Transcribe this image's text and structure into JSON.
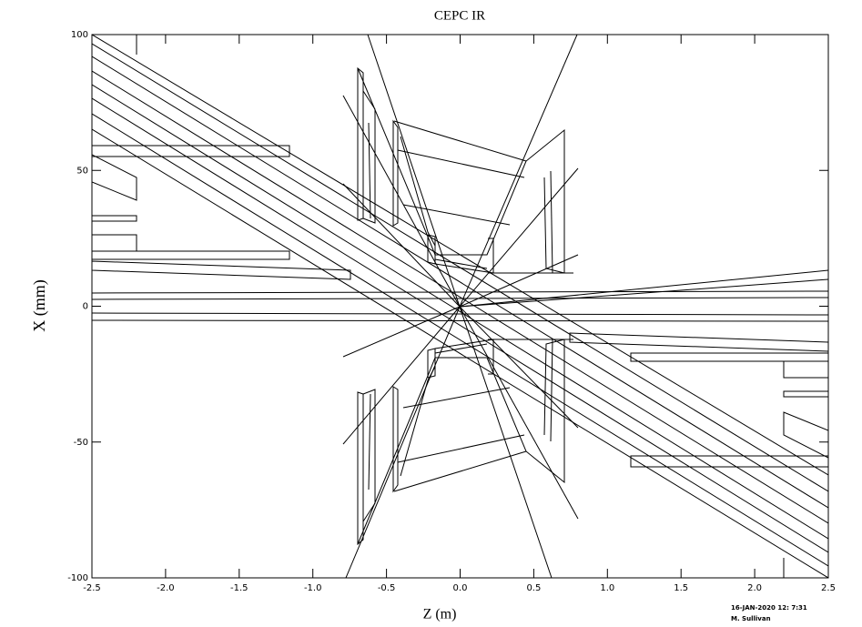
{
  "chart_data": {
    "type": "line",
    "title": "CEPC IR",
    "xlabel": "Z (m)",
    "ylabel": "X (mm)",
    "xlim": [
      -2.5,
      2.5
    ],
    "ylim": [
      -100,
      100
    ],
    "xticks": [
      -2.5,
      {
        "value": -2,
        "label": "-2.0"
      },
      -1.5,
      {
        "value": -1,
        "label": "-1.0"
      },
      -0.5,
      {
        "value": 0,
        "label": "0.0"
      },
      0.5,
      {
        "value": 1,
        "label": "1.0"
      },
      1.5,
      {
        "value": 2,
        "label": "2.0"
      },
      2.5
    ],
    "yticks": [
      -100,
      -50,
      0,
      50,
      100
    ],
    "annotations": [
      "16-JAN-2020 12: 7:31",
      "M. Sullivan"
    ]
  }
}
